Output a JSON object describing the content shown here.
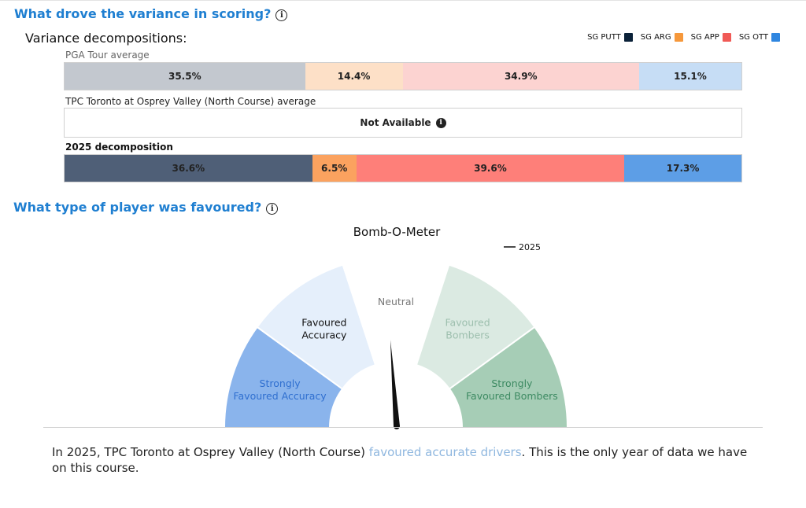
{
  "variance_section": {
    "title": "What drove the variance in scoring?",
    "subtitle": "Variance decompositions:",
    "legend": [
      {
        "label": "SG PUTT",
        "color": "#0b2239"
      },
      {
        "label": "SG ARG",
        "color": "#f6983b"
      },
      {
        "label": "SG APP",
        "color": "#f05a56"
      },
      {
        "label": "SG OTT",
        "color": "#2f86e0"
      }
    ],
    "rows": {
      "tour": {
        "label": "PGA Tour average",
        "segments": [
          {
            "value": 35.5,
            "text": "35.5%",
            "color": "#c3c8cf"
          },
          {
            "value": 14.4,
            "text": "14.4%",
            "color": "#fde0c7"
          },
          {
            "value": 34.9,
            "text": "34.9%",
            "color": "#fcd3d1"
          },
          {
            "value": 15.1,
            "text": "15.1%",
            "color": "#c6ddf5"
          }
        ]
      },
      "course": {
        "label": "TPC Toronto at Osprey Valley (North Course) average",
        "na_text": "Not Available"
      },
      "year": {
        "label": "2025 decomposition",
        "segments": [
          {
            "value": 36.6,
            "text": "36.6%",
            "color": "#4f5f77"
          },
          {
            "value": 6.5,
            "text": "6.5%",
            "color": "#fba25f"
          },
          {
            "value": 39.6,
            "text": "39.6%",
            "color": "#fe7f79"
          },
          {
            "value": 17.3,
            "text": "17.3%",
            "color": "#5d9ee6"
          }
        ]
      }
    }
  },
  "player_section": {
    "title": "What type of player was favoured?"
  },
  "chart_data": {
    "type": "gauge",
    "title": "Bomb-O-Meter",
    "legend": "2025",
    "categories": [
      {
        "label": [
          "Strongly",
          "Favoured Accuracy"
        ],
        "color": "#8ab4ec",
        "text_color": "#2f6fd0"
      },
      {
        "label": [
          "Favoured",
          "Accuracy"
        ],
        "color": "#e5effb",
        "text_color": "#111111"
      },
      {
        "label": [
          "Neutral"
        ],
        "color": "#ffffff",
        "text_color": "#777777"
      },
      {
        "label": [
          "Favoured",
          "Bombers"
        ],
        "color": "#dbeae2",
        "text_color": "#9dbfae"
      },
      {
        "label": [
          "Strongly",
          "Favoured Bombers"
        ],
        "color": "#a6cdb6",
        "text_color": "#3d8a62"
      }
    ],
    "needle_category_index": 1.9
  },
  "summary": {
    "prefix": "In 2025, TPC Toronto at Osprey Valley (North Course) ",
    "highlight": "favoured accurate drivers",
    "suffix": ". This is the only year of data we have on this course."
  }
}
